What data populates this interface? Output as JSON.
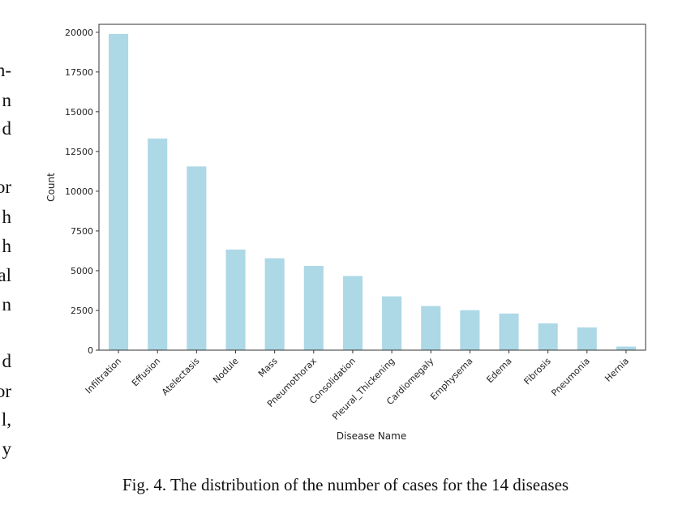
{
  "side_text": [
    "n-",
    "n",
    "d",
    "or",
    "h",
    "h",
    "al",
    "n",
    "d",
    "or",
    "l,",
    "y"
  ],
  "caption": "Fig. 4.  The distribution of the number of cases for the 14 diseases",
  "chart_data": {
    "type": "bar",
    "title": "",
    "xlabel": "Disease Name",
    "ylabel": "Count",
    "ylim": [
      0,
      20500
    ],
    "yticks": [
      0,
      2500,
      5000,
      7500,
      10000,
      12500,
      15000,
      17500,
      20000
    ],
    "grid": false,
    "bar_color": "#add8e6",
    "categories": [
      "Infiltration",
      "Effusion",
      "Atelectasis",
      "Nodule",
      "Mass",
      "Pneumothorax",
      "Consolidation",
      "Pleural_Thickening",
      "Cardiomegaly",
      "Emphysema",
      "Edema",
      "Fibrosis",
      "Pneumonia",
      "Hernia"
    ],
    "values": [
      19894,
      13317,
      11559,
      6331,
      5782,
      5302,
      4667,
      3385,
      2776,
      2516,
      2303,
      1686,
      1431,
      227
    ]
  }
}
